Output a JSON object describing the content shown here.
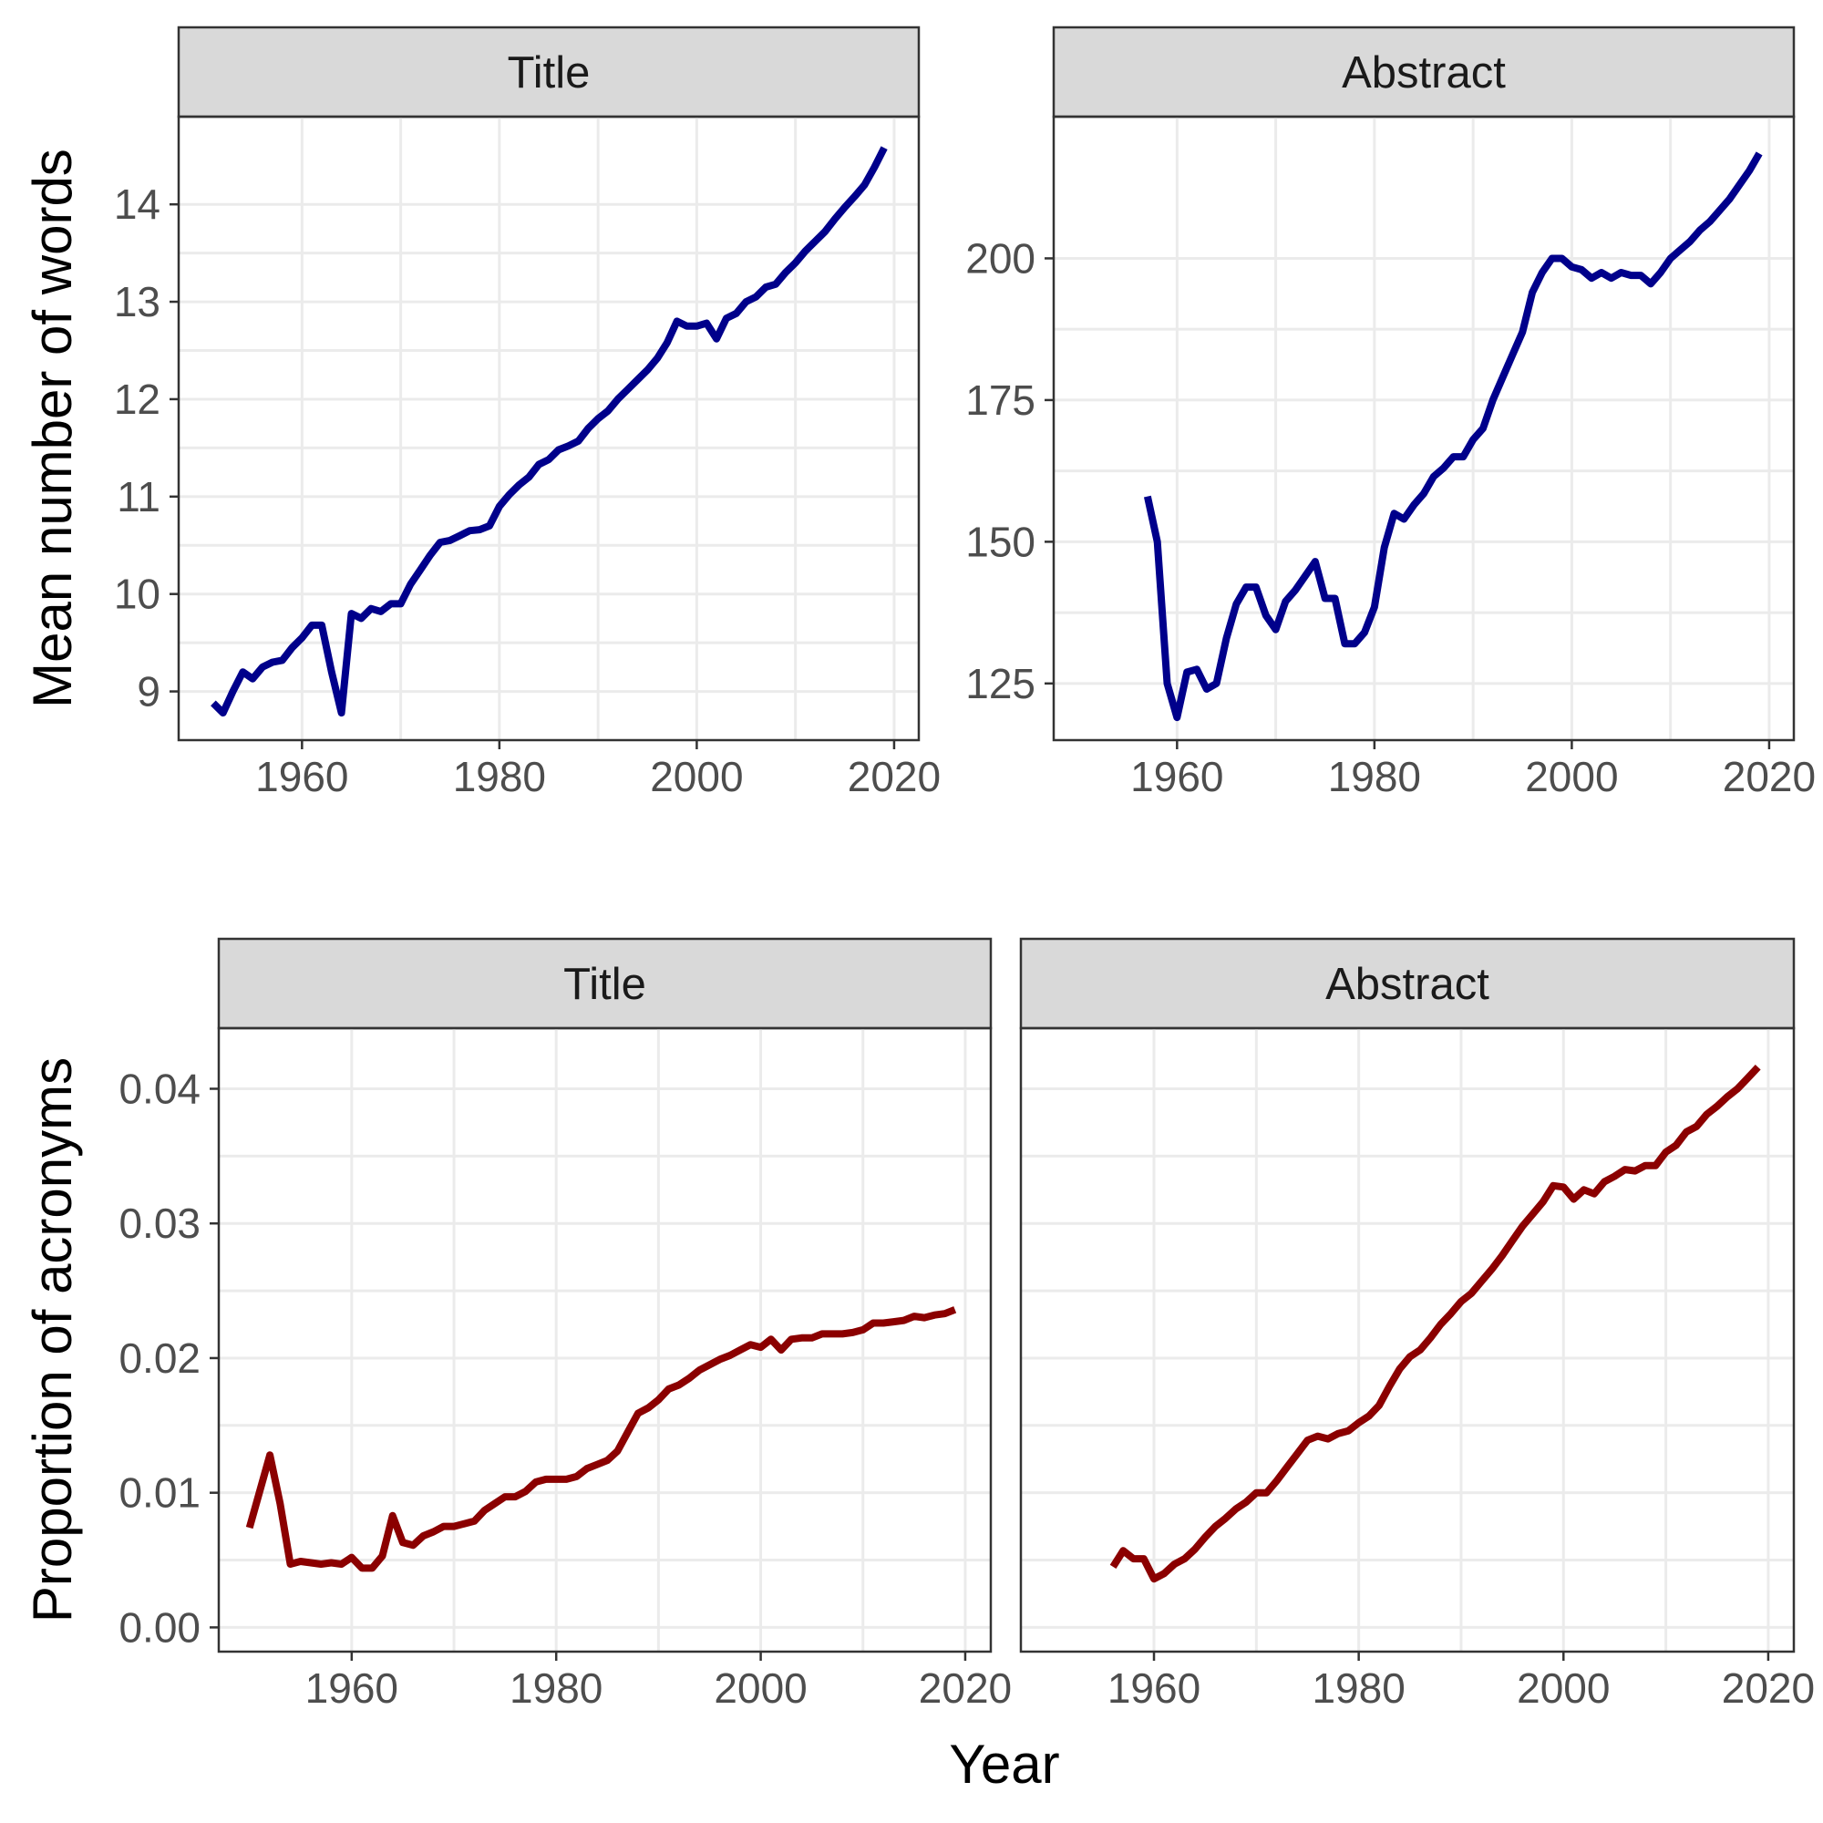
{
  "figure": {
    "x_axis_title": "Year",
    "row_y_titles": [
      "Mean number of words",
      "Proportion of acronyms"
    ]
  },
  "colors": {
    "words_series": "#00008b",
    "acronyms_series": "#8b0000",
    "strip_fill": "#d9d9d9",
    "grid": "#ebebeb"
  },
  "chart_data": [
    {
      "type": "line",
      "title": "Title",
      "xlabel": "",
      "ylabel": "Mean number of words",
      "xlim": [
        1947.5,
        2022.5
      ],
      "ylim": [
        8.5,
        14.9
      ],
      "x_ticks": [
        1960,
        1980,
        2000,
        2020
      ],
      "x_tick_labels": [
        "1960",
        "1980",
        "2000",
        "2020"
      ],
      "y_ticks": [
        9,
        10,
        11,
        12,
        13,
        14
      ],
      "y_tick_labels": [
        "9",
        "10",
        "11",
        "12",
        "13",
        "14"
      ],
      "grid": true,
      "color": "#00008b",
      "x": [
        1951,
        1952,
        1953,
        1954,
        1955,
        1956,
        1957,
        1958,
        1959,
        1960,
        1961,
        1962,
        1963,
        1964,
        1965,
        1966,
        1967,
        1968,
        1969,
        1970,
        1971,
        1972,
        1973,
        1974,
        1975,
        1976,
        1977,
        1978,
        1979,
        1980,
        1981,
        1982,
        1983,
        1984,
        1985,
        1986,
        1987,
        1988,
        1989,
        1990,
        1991,
        1992,
        1993,
        1994,
        1995,
        1996,
        1997,
        1998,
        1999,
        2000,
        2001,
        2002,
        2003,
        2004,
        2005,
        2006,
        2007,
        2008,
        2009,
        2010,
        2011,
        2012,
        2013,
        2014,
        2015,
        2016,
        2017,
        2018,
        2019
      ],
      "y": [
        8.88,
        8.78,
        9.0,
        9.2,
        9.13,
        9.25,
        9.3,
        9.32,
        9.45,
        9.55,
        9.68,
        9.68,
        9.2,
        8.78,
        9.8,
        9.75,
        9.85,
        9.82,
        9.9,
        9.9,
        10.1,
        10.25,
        10.4,
        10.53,
        10.55,
        10.6,
        10.65,
        10.66,
        10.7,
        10.9,
        11.02,
        11.12,
        11.2,
        11.33,
        11.38,
        11.48,
        11.52,
        11.57,
        11.7,
        11.8,
        11.88,
        12.0,
        12.1,
        12.2,
        12.3,
        12.42,
        12.58,
        12.8,
        12.75,
        12.75,
        12.78,
        12.62,
        12.83,
        12.88,
        13.0,
        13.05,
        13.15,
        13.18,
        13.3,
        13.4,
        13.52,
        13.62,
        13.72,
        13.85,
        13.97,
        14.08,
        14.2,
        14.38,
        14.58
      ]
    },
    {
      "type": "line",
      "title": "Abstract",
      "xlabel": "",
      "ylabel": "",
      "xlim": [
        1947.5,
        2022.5
      ],
      "ylim": [
        115,
        225
      ],
      "x_ticks": [
        1960,
        1980,
        2000,
        2020
      ],
      "x_tick_labels": [
        "1960",
        "1980",
        "2000",
        "2020"
      ],
      "y_ticks": [
        125,
        150,
        175,
        200
      ],
      "y_tick_labels": [
        "125",
        "150",
        "175",
        "200"
      ],
      "grid": true,
      "color": "#00008b",
      "x": [
        1957,
        1958,
        1959,
        1960,
        1961,
        1962,
        1963,
        1964,
        1965,
        1966,
        1967,
        1968,
        1969,
        1970,
        1971,
        1972,
        1973,
        1974,
        1975,
        1976,
        1977,
        1978,
        1979,
        1980,
        1981,
        1982,
        1983,
        1984,
        1985,
        1986,
        1987,
        1988,
        1989,
        1990,
        1991,
        1992,
        1993,
        1994,
        1995,
        1996,
        1997,
        1998,
        1999,
        2000,
        2001,
        2002,
        2003,
        2004,
        2005,
        2006,
        2007,
        2008,
        2009,
        2010,
        2011,
        2012,
        2013,
        2014,
        2015,
        2016,
        2017,
        2018,
        2019
      ],
      "y": [
        158,
        150,
        125,
        119,
        127,
        127.5,
        124,
        125,
        133,
        139,
        142,
        142,
        137,
        134.5,
        139.5,
        141.5,
        144,
        146.5,
        140,
        140,
        132,
        132,
        134,
        138.5,
        149,
        155,
        154,
        156.5,
        158.5,
        161.5,
        163,
        165,
        165,
        168,
        170,
        175,
        179,
        183,
        187,
        194,
        197.5,
        200,
        200,
        198.5,
        198,
        196.5,
        197.5,
        196.5,
        197.5,
        197,
        197,
        195.5,
        197.5,
        200,
        201.5,
        203,
        205,
        206.5,
        208.5,
        210.5,
        213,
        215.5,
        218.5
      ]
    },
    {
      "type": "line",
      "title": "Title",
      "xlabel": "",
      "ylabel": "Proportion of acronyms",
      "xlim": [
        1947,
        2022.5
      ],
      "ylim": [
        -0.0018,
        0.0445
      ],
      "x_ticks": [
        1960,
        1980,
        2000,
        2020
      ],
      "x_tick_labels": [
        "1960",
        "1980",
        "2000",
        "2020"
      ],
      "y_ticks": [
        0.0,
        0.01,
        0.02,
        0.03,
        0.04
      ],
      "y_tick_labels": [
        "0.00",
        "0.01",
        "0.02",
        "0.03",
        "0.04"
      ],
      "grid": true,
      "color": "#8b0000",
      "x": [
        1950,
        1952,
        1953,
        1954,
        1955,
        1956,
        1957,
        1958,
        1959,
        1960,
        1961,
        1962,
        1963,
        1964,
        1965,
        1966,
        1967,
        1968,
        1969,
        1970,
        1971,
        1972,
        1973,
        1974,
        1975,
        1976,
        1977,
        1978,
        1979,
        1980,
        1981,
        1982,
        1983,
        1984,
        1985,
        1986,
        1987,
        1988,
        1989,
        1990,
        1991,
        1992,
        1993,
        1994,
        1995,
        1996,
        1997,
        1998,
        1999,
        2000,
        2001,
        2002,
        2003,
        2004,
        2005,
        2006,
        2007,
        2008,
        2009,
        2010,
        2011,
        2012,
        2013,
        2014,
        2015,
        2016,
        2017,
        2018,
        2019
      ],
      "y": [
        0.0074,
        0.0128,
        0.0092,
        0.0047,
        0.0049,
        0.0048,
        0.0047,
        0.0048,
        0.0047,
        0.0052,
        0.0044,
        0.0044,
        0.0053,
        0.0083,
        0.0063,
        0.0061,
        0.0068,
        0.0071,
        0.0075,
        0.0075,
        0.0077,
        0.0079,
        0.0087,
        0.0092,
        0.0097,
        0.0097,
        0.0101,
        0.0108,
        0.011,
        0.011,
        0.011,
        0.0112,
        0.0118,
        0.0121,
        0.0124,
        0.0131,
        0.0145,
        0.0159,
        0.0163,
        0.0169,
        0.0177,
        0.018,
        0.0185,
        0.0191,
        0.0195,
        0.0199,
        0.0202,
        0.0206,
        0.021,
        0.0208,
        0.0214,
        0.0206,
        0.0214,
        0.0215,
        0.0215,
        0.0218,
        0.0218,
        0.0218,
        0.0219,
        0.0221,
        0.0226,
        0.0226,
        0.0227,
        0.0228,
        0.0231,
        0.023,
        0.0232,
        0.0233,
        0.0236
      ]
    },
    {
      "type": "line",
      "title": "Abstract",
      "xlabel": "",
      "ylabel": "",
      "xlim": [
        1947,
        2022.5
      ],
      "ylim": [
        -0.0018,
        0.0445
      ],
      "x_ticks": [
        1960,
        1980,
        2000,
        2020
      ],
      "x_tick_labels": [
        "1960",
        "1980",
        "2000",
        "2020"
      ],
      "y_ticks": [],
      "y_tick_labels": [],
      "grid": true,
      "color": "#8b0000",
      "x": [
        1956,
        1957,
        1958,
        1959,
        1960,
        1961,
        1962,
        1963,
        1964,
        1965,
        1966,
        1967,
        1968,
        1969,
        1970,
        1971,
        1972,
        1973,
        1974,
        1975,
        1976,
        1977,
        1978,
        1979,
        1980,
        1981,
        1982,
        1983,
        1984,
        1985,
        1986,
        1987,
        1988,
        1989,
        1990,
        1991,
        1992,
        1993,
        1994,
        1995,
        1996,
        1997,
        1998,
        1999,
        2000,
        2001,
        2002,
        2003,
        2004,
        2005,
        2006,
        2007,
        2008,
        2009,
        2010,
        2011,
        2012,
        2013,
        2014,
        2015,
        2016,
        2017,
        2018,
        2019
      ],
      "y": [
        0.0045,
        0.0057,
        0.0051,
        0.0051,
        0.0036,
        0.004,
        0.0047,
        0.0051,
        0.0058,
        0.0067,
        0.0075,
        0.0081,
        0.0088,
        0.0093,
        0.01,
        0.01,
        0.0109,
        0.0119,
        0.0129,
        0.0139,
        0.0142,
        0.014,
        0.0144,
        0.0146,
        0.0152,
        0.0157,
        0.0165,
        0.0179,
        0.0192,
        0.0201,
        0.0206,
        0.0215,
        0.0225,
        0.0233,
        0.0242,
        0.0248,
        0.0257,
        0.0266,
        0.0276,
        0.0287,
        0.0298,
        0.0307,
        0.0316,
        0.0328,
        0.0327,
        0.0318,
        0.0325,
        0.0322,
        0.0331,
        0.0335,
        0.034,
        0.0339,
        0.0343,
        0.0343,
        0.0353,
        0.0358,
        0.0368,
        0.0372,
        0.0381,
        0.0387,
        0.0394,
        0.04,
        0.0408,
        0.0416
      ]
    }
  ]
}
